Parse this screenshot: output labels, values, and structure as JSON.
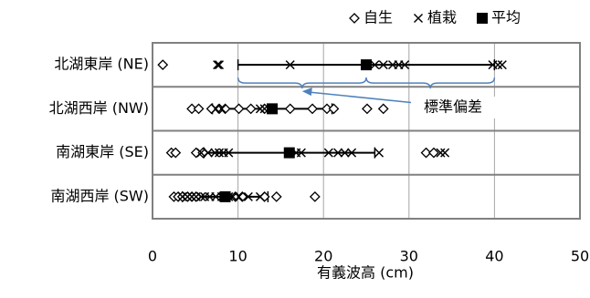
{
  "chart_data": {
    "type": "strip",
    "x_label": "有義波高 (cm)",
    "categories": [
      "北湖東岸 (NE)",
      "北湖西岸 (NW)",
      "南湖東岸 (SE)",
      "南湖西岸 (SW)"
    ],
    "series": [
      {
        "name": "自生",
        "marker": "diamond",
        "color": "#000000",
        "values": [
          [
            1.2
          ],
          [
            4.6,
            5.4,
            6.9,
            7.8,
            8.5,
            10.1,
            11.5,
            13.1,
            16.1,
            18.7,
            20.4,
            21.2,
            25.1,
            27.0
          ],
          [
            2.2,
            2.7,
            5.1,
            5.9,
            32.0,
            32.9
          ],
          [
            2.5,
            3.0,
            3.5,
            4.1,
            4.6,
            5.1,
            9.7,
            10.5,
            13.1,
            14.5,
            19.0
          ]
        ]
      },
      {
        "name": "植栽",
        "marker": "cross",
        "color": "#000000",
        "values": [
          [
            7.6,
            7.8,
            16.1,
            26.0,
            27.0,
            28.1,
            28.8,
            29.5,
            39.8,
            40.4,
            40.9
          ],
          [
            7.4,
            8.1,
            12.6,
            13.1
          ],
          [
            5.7,
            6.5,
            7.3,
            7.8,
            8.3,
            8.9,
            16.0,
            16.8,
            17.4,
            20.6,
            21.7,
            22.5,
            23.3,
            26.5,
            33.7,
            34.2
          ],
          [
            3.5,
            4.1,
            4.6,
            5.1,
            5.7,
            6.1,
            6.7,
            7.4,
            8.1,
            8.9,
            9.4,
            10.1,
            11.2,
            12.6
          ]
        ]
      },
      {
        "name": "平均",
        "marker": "square",
        "color": "#000000",
        "values": [
          25,
          14,
          16,
          8.5
        ],
        "errors": [
          15,
          7,
          10,
          5
        ]
      }
    ],
    "annotation": "標準偏差",
    "xlim": [
      0,
      50
    ],
    "xticks": [
      0,
      10,
      20,
      30,
      40,
      50
    ],
    "grid": true
  }
}
